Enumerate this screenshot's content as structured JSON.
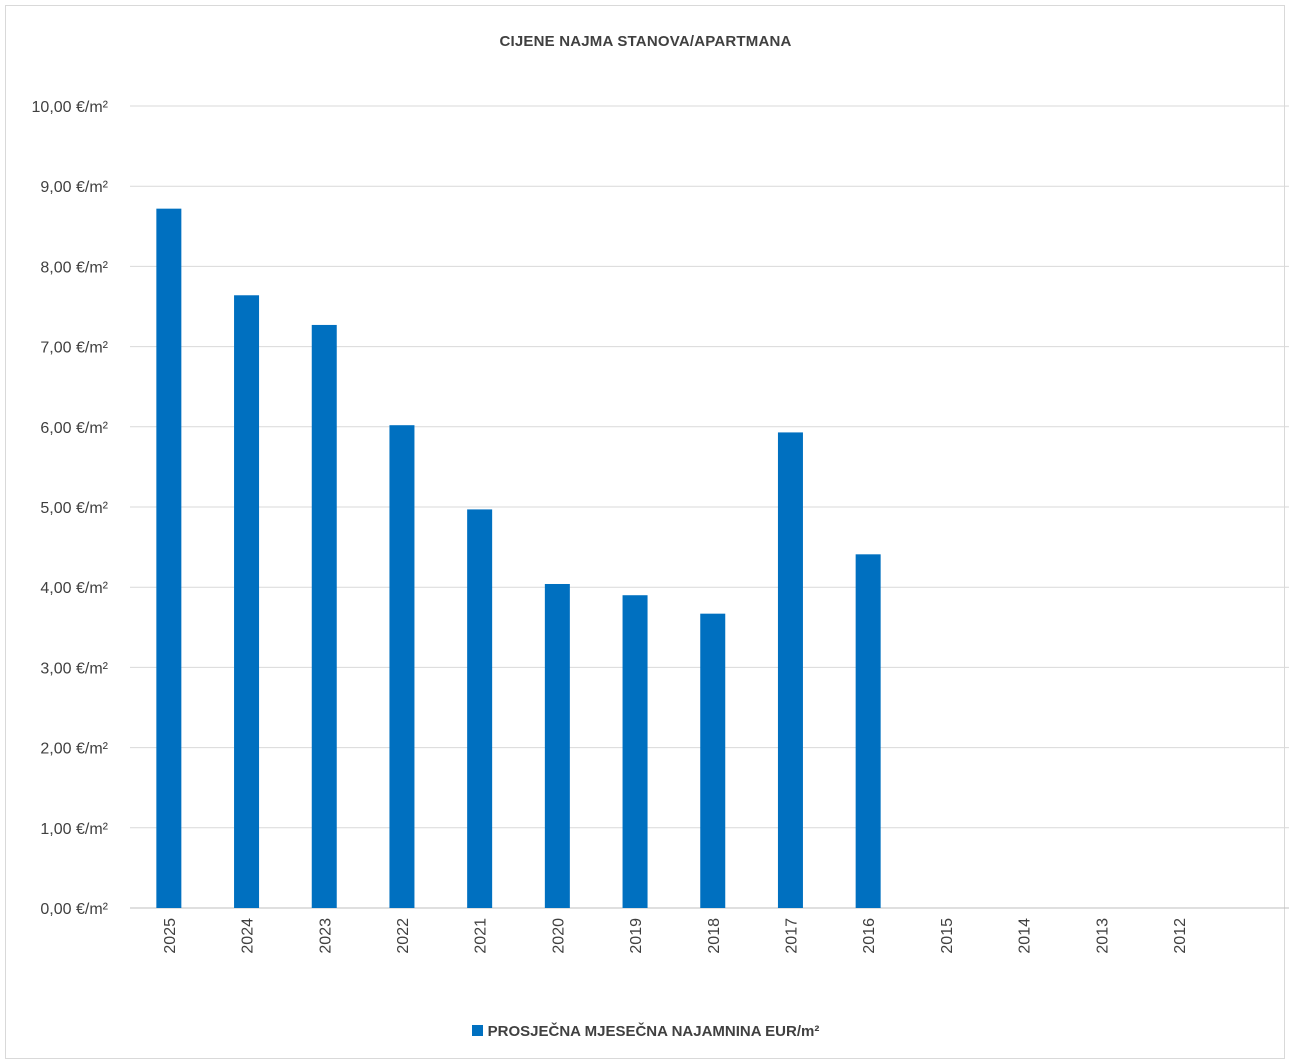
{
  "chart_data": {
    "type": "bar",
    "title": "CIJENE NAJMA STANOVA/APARTMANA",
    "categories": [
      "2025",
      "2024",
      "2023",
      "2022",
      "2021",
      "2020",
      "2019",
      "2018",
      "2017",
      "2016",
      "2015",
      "2014",
      "2013",
      "2012"
    ],
    "series": [
      {
        "name": "PROSJEČNA MJESEČNA NAJAMNINA EUR/m²",
        "values": [
          8.72,
          7.64,
          7.27,
          6.02,
          4.97,
          4.04,
          3.9,
          3.67,
          5.93,
          4.41,
          null,
          null,
          null,
          null
        ],
        "color": "#0070c0"
      }
    ],
    "ylim": [
      0,
      10
    ],
    "yticks": [
      "0,00 €/m²",
      "1,00 €/m²",
      "2,00 €/m²",
      "3,00 €/m²",
      "4,00 €/m²",
      "5,00 €/m²",
      "6,00 €/m²",
      "7,00 €/m²",
      "8,00 €/m²",
      "9,00 €/m²",
      "10,00 €/m²"
    ],
    "grid": true,
    "legend_position": "bottom",
    "xlabel": "",
    "ylabel": ""
  }
}
